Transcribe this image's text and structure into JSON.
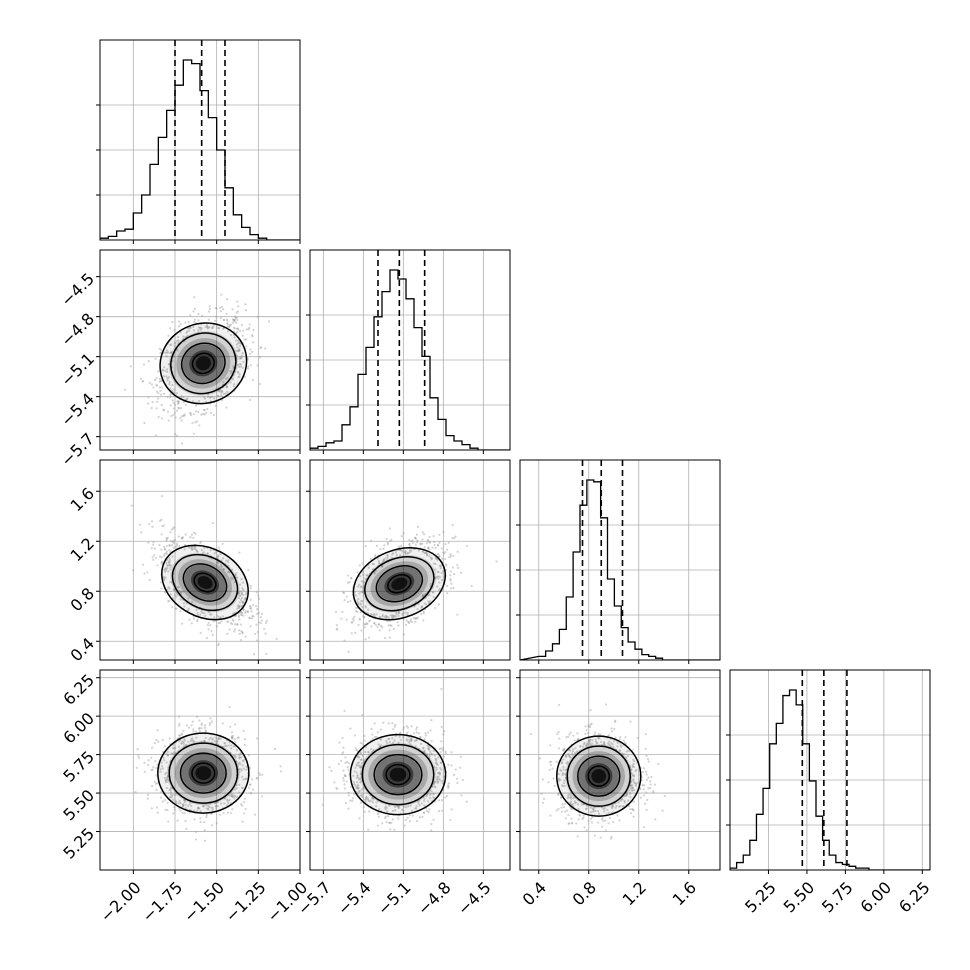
{
  "chart_data": {
    "type": "corner",
    "grid": true,
    "parameters": [
      {
        "range": [
          -2.2,
          -1.0
        ],
        "ticks": [
          "−2.00",
          "−1.75",
          "−1.50",
          "−1.25",
          "−1.00"
        ],
        "tick_values": [
          -2.0,
          -1.75,
          -1.5,
          -1.25,
          -1.0
        ],
        "quantiles": [
          -1.75,
          -1.59,
          -1.45
        ],
        "hist_bins_lo": -2.2,
        "hist_bins_width": 0.05,
        "hist": [
          1,
          2,
          5,
          6,
          15,
          25,
          42,
          57,
          72,
          86,
          100,
          98,
          83,
          68,
          50,
          29,
          14,
          7,
          3,
          1,
          0,
          0,
          0,
          0
        ]
      },
      {
        "range": [
          -5.8,
          -4.3
        ],
        "ticks": [
          "−5.7",
          "−5.4",
          "−5.1",
          "−4.8",
          "−4.5"
        ],
        "tick_values": [
          -5.7,
          -5.4,
          -5.1,
          -4.8,
          -4.5
        ],
        "quantiles": [
          -5.29,
          -5.13,
          -4.94
        ],
        "hist_bins_lo": -5.8,
        "hist_bins_width": 0.06,
        "hist": [
          1,
          2,
          4,
          5,
          14,
          24,
          42,
          57,
          74,
          88,
          100,
          95,
          84,
          68,
          52,
          29,
          17,
          8,
          5,
          3,
          1,
          0,
          0,
          0,
          0
        ]
      },
      {
        "range": [
          0.25,
          1.85
        ],
        "ticks": [
          "0.4",
          "0.8",
          "1.2",
          "1.6"
        ],
        "tick_values": [
          0.4,
          0.8,
          1.2,
          1.6
        ],
        "quantiles": [
          0.75,
          0.9,
          1.07
        ],
        "hist_bins_lo": 0.4,
        "hist_bins_width": 0.055,
        "hist": [
          2,
          5,
          9,
          17,
          35,
          60,
          86,
          100,
          99,
          79,
          45,
          30,
          18,
          10,
          6,
          3,
          2,
          1,
          0
        ]
      },
      {
        "range": [
          5.0,
          6.3
        ],
        "ticks": [
          "5.25",
          "5.50",
          "5.75",
          "6.00",
          "6.25"
        ],
        "tick_values": [
          5.25,
          5.5,
          5.75,
          6.0,
          6.25
        ],
        "quantiles": [
          5.47,
          5.61,
          5.76
        ],
        "hist_bins_lo": 5.0,
        "hist_bins_width": 0.043,
        "hist": [
          1,
          4,
          8,
          16,
          30,
          44,
          68,
          79,
          94,
          97,
          89,
          68,
          48,
          29,
          16,
          8,
          4,
          3,
          2,
          1,
          1,
          0,
          0,
          0,
          0,
          0,
          0,
          0,
          0,
          0
        ]
      }
    ],
    "pairs": [
      {
        "x": 0,
        "y": 1,
        "center": [
          -1.58,
          -5.15
        ],
        "sd": [
          0.125,
          0.17
        ],
        "rho": 0.35
      },
      {
        "x": 0,
        "y": 2,
        "center": [
          -1.57,
          0.87
        ],
        "sd": [
          0.13,
          0.17
        ],
        "rho": -0.55
      },
      {
        "x": 1,
        "y": 2,
        "center": [
          -5.13,
          0.86
        ],
        "sd": [
          0.17,
          0.16
        ],
        "rho": 0.45
      },
      {
        "x": 0,
        "y": 3,
        "center": [
          -1.58,
          5.63
        ],
        "sd": [
          0.13,
          0.13
        ],
        "rho": 0.0
      },
      {
        "x": 1,
        "y": 3,
        "center": [
          -5.14,
          5.62
        ],
        "sd": [
          0.17,
          0.13
        ],
        "rho": 0.0
      },
      {
        "x": 2,
        "y": 3,
        "center": [
          0.88,
          5.61
        ],
        "sd": [
          0.16,
          0.13
        ],
        "rho": 0.0
      }
    ],
    "contour_levels_sigma": [
      0.5,
      1.0,
      1.5,
      2.0
    ],
    "colors": {
      "hist_line": "#000000",
      "density": "#000000",
      "points": "#9e9e9e",
      "grid": "#b0b0b0",
      "frame": "#000000"
    }
  }
}
